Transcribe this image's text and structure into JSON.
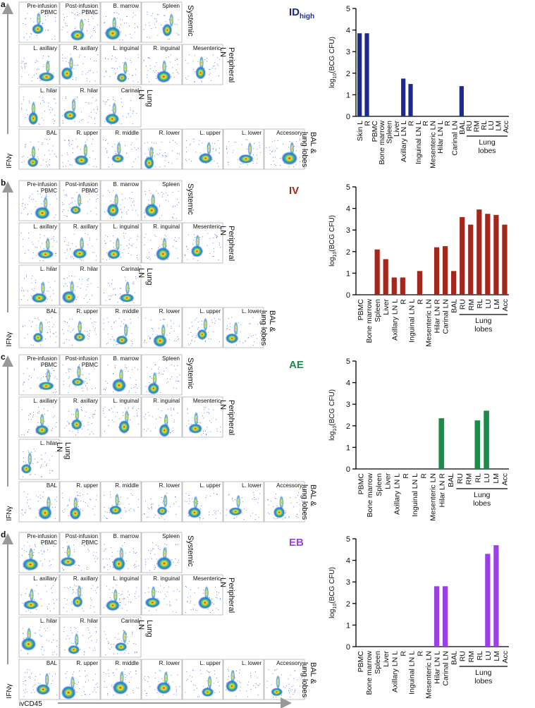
{
  "chart_data": [
    {
      "type": "bar",
      "title": [
        "ID",
        "high"
      ],
      "color": "#1b2a8c",
      "y_label": [
        "log",
        "10",
        "(BCG CFU)"
      ],
      "categories": [
        "Skin L",
        "R",
        "PBMC",
        "Bone marrow",
        "Spleen",
        "Liver",
        "Axillary LN L",
        "R",
        "Inguinal LN L",
        "R",
        "Mesenteric LN",
        "Hilar LN L",
        "R",
        "Carinal LN",
        "BAL",
        "RU",
        "RM",
        "RL",
        "LU",
        "LM",
        "Acc"
      ],
      "values": [
        3.85,
        3.85,
        0,
        0,
        0,
        0,
        1.75,
        1.5,
        0,
        0,
        0,
        0,
        0,
        0,
        1.4,
        0,
        0,
        0,
        0,
        0,
        0
      ],
      "group_label": [
        "Lung",
        "lobes"
      ],
      "ylim": [
        0,
        5
      ],
      "yticks": [
        0,
        1,
        2,
        3,
        4,
        5
      ]
    },
    {
      "type": "bar",
      "title": [
        "IV"
      ],
      "color": "#a3271a",
      "y_label": [
        "log",
        "10",
        "(BCG CFU)"
      ],
      "categories": [
        "PBMC",
        "Bone marrow",
        "Spleen",
        "Liver",
        "Axillary LN L",
        "R",
        "Inguinal LN L",
        "R",
        "Mesenteric LN",
        "Hilar LN R",
        "Carinal LN",
        "BAL",
        "RU",
        "RM",
        "RL",
        "LU",
        "LM",
        "Acc"
      ],
      "values": [
        0,
        0,
        2.1,
        1.65,
        0.8,
        0.8,
        0,
        1.1,
        0,
        2.2,
        2.25,
        1.1,
        3.6,
        3.25,
        3.95,
        3.75,
        3.7,
        3.25
      ],
      "group_label": [
        "Lung",
        "lobes"
      ],
      "ylim": [
        0,
        5
      ],
      "yticks": [
        0,
        1,
        2,
        3,
        4,
        5
      ]
    },
    {
      "type": "bar",
      "title": [
        "AE"
      ],
      "color": "#1e8a4a",
      "y_label": [
        "log",
        "10",
        "(BCG CFU)"
      ],
      "categories": [
        "PBMC",
        "Bone marrow",
        "Spleen",
        "Liver",
        "Axillary LN L",
        "R",
        "Inguinal LN L",
        "R",
        "Mesenteric LN",
        "Hilar LN R",
        "BAL",
        "RU",
        "RM",
        "RL",
        "LU",
        "LM",
        "Acc"
      ],
      "values": [
        0,
        0,
        0,
        0,
        0,
        0,
        0,
        0,
        0,
        2.35,
        0,
        0,
        0,
        2.25,
        2.7,
        0,
        0
      ],
      "group_label": [
        "Lung",
        "lobes"
      ],
      "ylim": [
        0,
        5
      ],
      "yticks": [
        0,
        1,
        2,
        3,
        4,
        5
      ]
    },
    {
      "type": "bar",
      "title": [
        "EB"
      ],
      "color": "#9b3fe6",
      "y_label": [
        "log",
        "10",
        "(BCG CFU)"
      ],
      "categories": [
        "PBMC",
        "Bone marrow",
        "Spleen",
        "Liver",
        "Axillary LN L",
        "R",
        "Inguinal LN L",
        "R",
        "Mesenteric LN",
        "Hilar LN L",
        "Carinal LN",
        "BAL",
        "RU",
        "RM",
        "RL",
        "LU",
        "LM",
        "Acc"
      ],
      "values": [
        0,
        0,
        0,
        0,
        0,
        0,
        0,
        0,
        0,
        2.8,
        2.8,
        0,
        0,
        0,
        0,
        4.3,
        4.7,
        0
      ],
      "group_label": [
        "Lung",
        "lobes"
      ],
      "ylim": [
        0,
        5
      ],
      "yticks": [
        0,
        1,
        2,
        3,
        4,
        5
      ]
    }
  ],
  "flow_panels": [
    {
      "letter": "a",
      "y_label": "IFNγ",
      "rows": [
        {
          "plots": [
            [
              "Pre-infusion",
              "PBMC"
            ],
            [
              "Post-infusion",
              "PBMC"
            ],
            [
              "B. marrow"
            ],
            [
              "Spleen"
            ]
          ],
          "label": [
            "Systemic"
          ]
        },
        {
          "plots": [
            [
              "L. axillary"
            ],
            [
              "R. axillary"
            ],
            [
              "L. inguinal"
            ],
            [
              "R. inguinal"
            ],
            [
              "Mesenteric"
            ]
          ],
          "label": [
            "Peripheral",
            "LN"
          ]
        },
        {
          "plots": [
            [
              "L. hilar"
            ],
            [
              "R. hilar"
            ],
            [
              "Carinal"
            ]
          ],
          "label": [
            "Lung",
            "LN"
          ]
        },
        {
          "plots": [
            [
              "BAL"
            ],
            [
              "R. upper"
            ],
            [
              "R. middle"
            ],
            [
              "R. lower"
            ],
            [
              "L. upper"
            ],
            [
              "L. lower"
            ],
            [
              "Accessory"
            ]
          ],
          "label": [
            "BAL &",
            "lung lobes"
          ]
        }
      ]
    },
    {
      "letter": "b",
      "y_label": "IFNγ",
      "rows": [
        {
          "plots": [
            [
              "Pre-infusion",
              "PBMC"
            ],
            [
              "Post-infusion",
              "PBMC"
            ],
            [
              "B. marrow"
            ],
            [
              "Spleen"
            ]
          ],
          "label": [
            "Systemic"
          ]
        },
        {
          "plots": [
            [
              "L. axillary"
            ],
            [
              "R. axillary"
            ],
            [
              "L. inguinal"
            ],
            [
              "R. inguinal"
            ],
            [
              "Mesenteric"
            ]
          ],
          "label": [
            "Peripheral",
            "LN"
          ]
        },
        {
          "plots": [
            [
              "L. hilar"
            ],
            [
              "R. hilar"
            ],
            [
              "Carinal"
            ]
          ],
          "label": [
            "Lung",
            "LN"
          ]
        },
        {
          "plots": [
            [
              "BAL"
            ],
            [
              "R. upper"
            ],
            [
              "R. middle"
            ],
            [
              "R. lower"
            ],
            [
              "L. upper"
            ],
            [
              "L. lower"
            ]
          ],
          "label": [
            "BAL &",
            "lung lobes"
          ]
        }
      ]
    },
    {
      "letter": "c",
      "y_label": "IFNγ",
      "rows": [
        {
          "plots": [
            [
              "Pre-infusion",
              "PBMC"
            ],
            [
              "Post-infusion",
              "PBMC"
            ],
            [
              "B. marrow"
            ],
            [
              "Spleen"
            ]
          ],
          "label": [
            "Systemic"
          ]
        },
        {
          "plots": [
            [
              "L. axillary"
            ],
            [
              "R. axillary"
            ],
            [
              "L. inguinal"
            ],
            [
              "R. inguinal"
            ],
            [
              "Mesenteric"
            ]
          ],
          "label": [
            "Peripheral",
            "LN"
          ]
        },
        {
          "plots": [
            [
              "L. hilar"
            ]
          ],
          "label": [
            "Lung",
            "LN"
          ]
        },
        {
          "plots": [
            [
              "BAL"
            ],
            [
              "R. upper"
            ],
            [
              "R. middle"
            ],
            [
              "R. lower"
            ],
            [
              "L. upper"
            ],
            [
              "L. lower"
            ],
            [
              "Accessory"
            ]
          ],
          "label": [
            "BAL &",
            "lung lobes"
          ]
        }
      ]
    },
    {
      "letter": "d",
      "y_label": "IFNγ",
      "rows": [
        {
          "plots": [
            [
              "Pre-infusion",
              "PBMC"
            ],
            [
              "Post-infusion",
              "PBMC"
            ],
            [
              "B. marrow"
            ],
            [
              "Spleen"
            ]
          ],
          "label": [
            "Systemic"
          ]
        },
        {
          "plots": [
            [
              "L. axillary"
            ],
            [
              "R. axillary"
            ],
            [
              "L. inguinal"
            ],
            [
              "R. inguinal"
            ],
            [
              "Mesenteric"
            ]
          ],
          "label": [
            "Peripheral",
            "LN"
          ]
        },
        {
          "plots": [
            [
              "L. hilar"
            ],
            [
              "R. hilar"
            ],
            [
              "Carinal"
            ]
          ],
          "label": [
            "Lung",
            "LN"
          ]
        },
        {
          "plots": [
            [
              "BAL"
            ],
            [
              "R. upper"
            ],
            [
              "R. middle"
            ],
            [
              "R. lower"
            ],
            [
              "L. upper"
            ],
            [
              "L. lower"
            ],
            [
              "Accessory"
            ]
          ],
          "label": [
            "BAL &",
            "lung lobes"
          ]
        }
      ]
    }
  ],
  "x_label": "ivCD45"
}
